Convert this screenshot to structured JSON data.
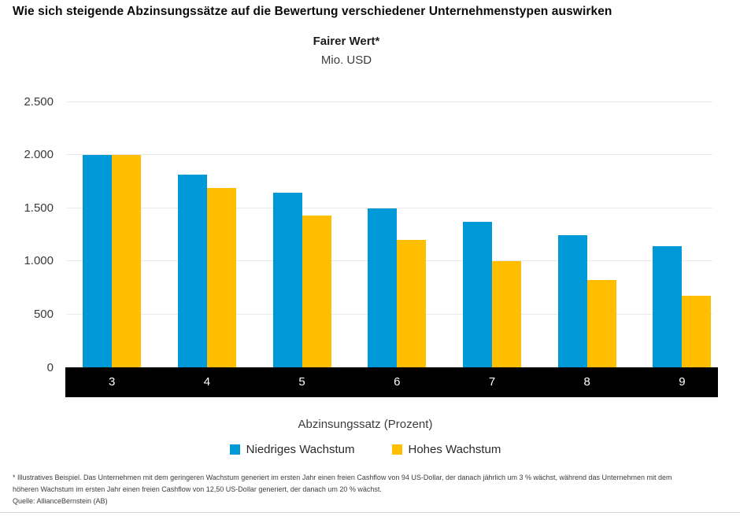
{
  "page": {
    "title": "Wie sich steigende Abzinsungssätze auf die Bewertung verschiedener Unternehmenstypen auswirken",
    "footnote": "* Illustratives Beispiel. Das Unternehmen mit dem geringeren Wachstum generiert im ersten Jahr einen freien Cashflow von 94 US-Dollar, der danach jährlich um 3 % wächst, während das Unternehmen mit dem höheren Wachstum im ersten Jahr einen freien Cashflow von 12,50 US-Dollar generiert, der danach um 20 % wächst.",
    "source": "Quelle: AllianceBernstein (AB)"
  },
  "chart_data": {
    "type": "bar",
    "title": "Fairer Wert*",
    "subtitle": "Mio. USD",
    "xlabel": "Abzinsungssatz (Prozent)",
    "ylabel": "Mio. USD",
    "categories": [
      "3",
      "4",
      "5",
      "6",
      "7",
      "8",
      "9"
    ],
    "series": [
      {
        "name": "Niedriges Wachstum",
        "color": "#0099D8",
        "values": [
          2000,
          1810,
          1645,
          1495,
          1365,
          1240,
          1140
        ]
      },
      {
        "name": "Hohes Wachstum",
        "color": "#FFBF00",
        "values": [
          2000,
          1690,
          1425,
          1195,
          1000,
          820,
          670
        ]
      }
    ],
    "ylim": [
      0,
      2500
    ],
    "yticks": [
      {
        "value": 0,
        "label": "0"
      },
      {
        "value": 500,
        "label": "500"
      },
      {
        "value": 1000,
        "label": "1.000"
      },
      {
        "value": 1500,
        "label": "1.500"
      },
      {
        "value": 2000,
        "label": "2.000"
      },
      {
        "value": 2500,
        "label": "2.500"
      }
    ],
    "grid": true,
    "legend_position": "bottom",
    "x_axis_band_color": "#000000",
    "grid_color": "#e9e9e9"
  }
}
